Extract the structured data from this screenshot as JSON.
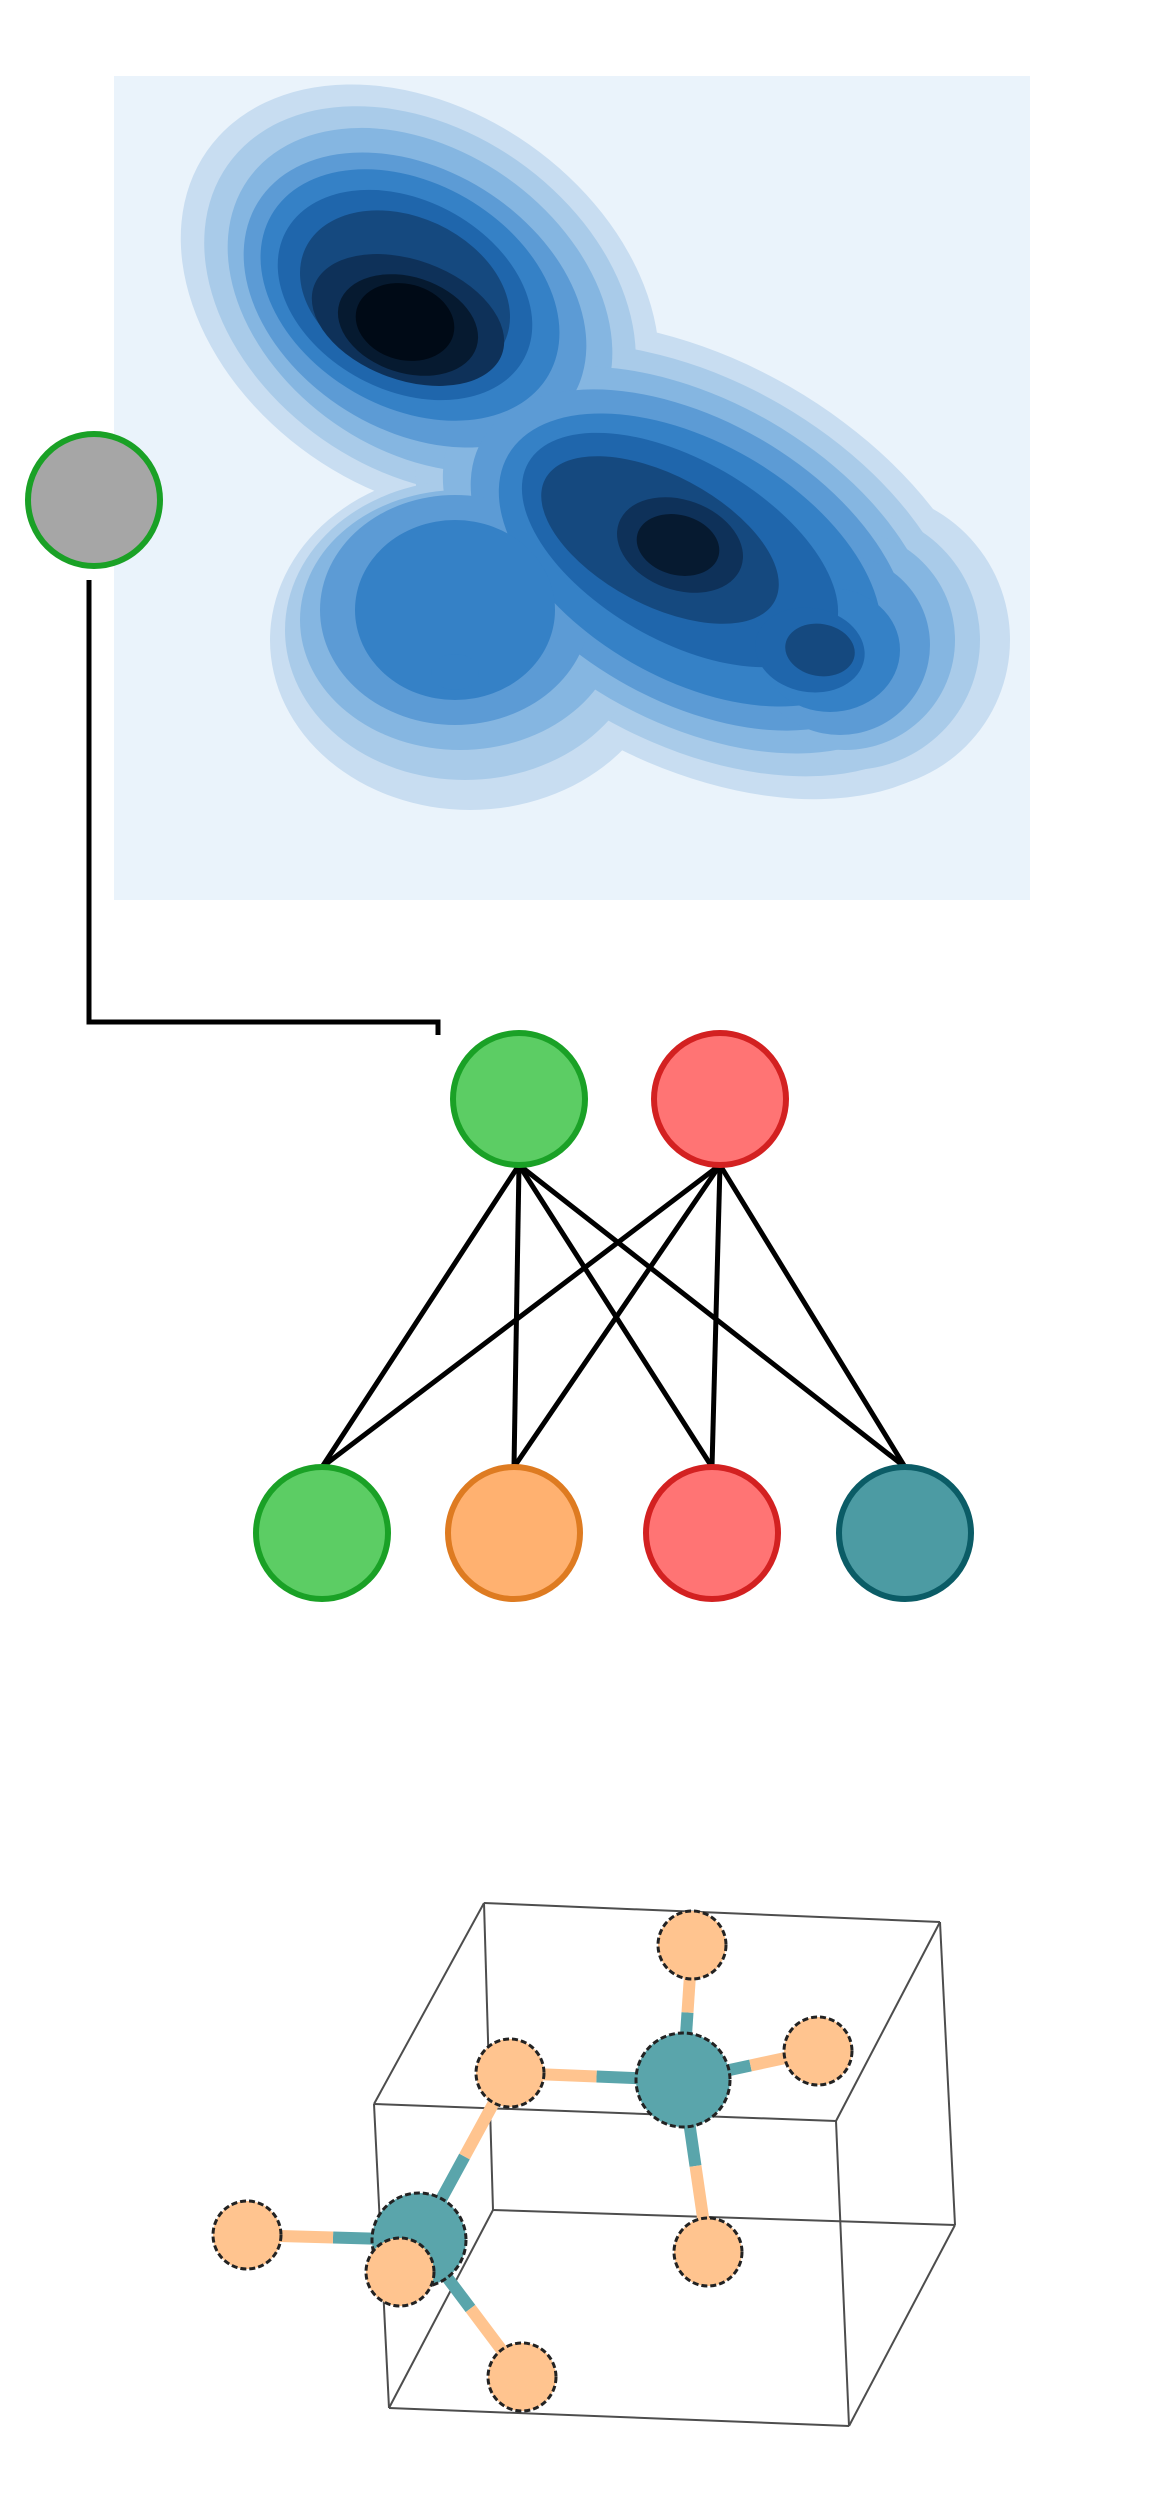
{
  "colors": {
    "background": "#ffffff",
    "density_panel_bg": "#eaf3fb",
    "density_palette": [
      "#c8ddf1",
      "#a9cbe9",
      "#85b6e1",
      "#5c9bd5",
      "#3581c6",
      "#1f66ac",
      "#15497f",
      "#0e3159",
      "#061a30",
      "#000a16"
    ],
    "green_fill": "#5ccd64",
    "green_stroke": "#1aa126",
    "orange_fill": "#ffb170",
    "orange_stroke": "#de7b21",
    "red_fill": "#ff7474",
    "red_stroke": "#d32121",
    "teal_fill": "#4c9ba3",
    "teal_stroke": "#0b5c66",
    "gray_fill": "#a6a6a6",
    "gray_fill_dark": "#999999",
    "atom_orange": "#ffc48f",
    "atom_teal": "#5aa5ab",
    "edge": "#000000",
    "cell_edge": "#4d4d4d"
  },
  "diagram": {
    "density_plot": {
      "kind": "2d-density-contour"
    },
    "selector_node": {
      "color": "gray",
      "outline": "green"
    },
    "network": {
      "top_nodes": [
        {
          "id": "top-green",
          "color": "green"
        },
        {
          "id": "top-red",
          "color": "red"
        }
      ],
      "bottom_nodes": [
        {
          "id": "bottom-green",
          "color": "green"
        },
        {
          "id": "bottom-orange",
          "color": "orange"
        },
        {
          "id": "bottom-red",
          "color": "red"
        },
        {
          "id": "bottom-teal",
          "color": "teal"
        }
      ],
      "edges": "fully-connected"
    },
    "molecule": {
      "kind": "crystal-structure",
      "center_atoms": 2,
      "ligand_atoms": 7,
      "unit_cell": "box"
    }
  }
}
